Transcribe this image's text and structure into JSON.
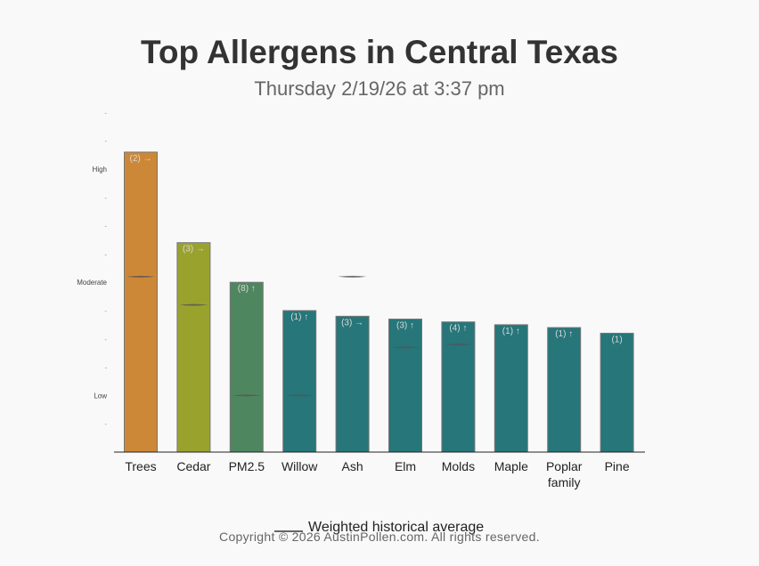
{
  "header": {
    "title": "Top Allergens in Central Texas",
    "subtitle": "Thursday 2/19/26 at 3:37 pm"
  },
  "legend": {
    "label": "Weighted historical average"
  },
  "footer": {
    "copyright": "Copyright © 2026 AustinPollen.com.  All rights reserved."
  },
  "chart_data": {
    "type": "bar",
    "title": "Top Allergens in Central Texas",
    "subtitle": "Thursday 2/19/26 at 3:37 pm",
    "categories": [
      "Trees",
      "Cedar",
      "PM2.5",
      "Willow",
      "Ash",
      "Elm",
      "Molds",
      "Maple",
      "Poplar family",
      "Pine"
    ],
    "category_lines": [
      [
        "Trees"
      ],
      [
        "Cedar"
      ],
      [
        "PM2.5"
      ],
      [
        "Willow"
      ],
      [
        "Ash"
      ],
      [
        "Elm"
      ],
      [
        "Molds"
      ],
      [
        "Maple"
      ],
      [
        "Poplar",
        "family"
      ],
      [
        "Pine"
      ]
    ],
    "values": [
      10.6,
      7.4,
      6.0,
      5.0,
      4.8,
      4.7,
      4.6,
      4.5,
      4.4,
      4.2
    ],
    "bar_labels": [
      "(2) →",
      "(3) →",
      "(8) ↑",
      "(1) ↑",
      "(3) →",
      "(3) ↑",
      "(4) ↑",
      "(1) ↑",
      "(1) ↑",
      "(1)"
    ],
    "bar_colors": [
      "#cd8837",
      "#9aa22e",
      "#4e875f",
      "#26767a",
      "#26767a",
      "#26767a",
      "#26767a",
      "#26767a",
      "#26767a",
      "#26767a"
    ],
    "historical_average": [
      6.2,
      5.2,
      2.0,
      2.0,
      6.2,
      3.7,
      3.8,
      null,
      null,
      null
    ],
    "y_ticks": [
      {
        "value": 12,
        "label": "-"
      },
      {
        "value": 11,
        "label": "-"
      },
      {
        "value": 10,
        "label": "High"
      },
      {
        "value": 9,
        "label": "-"
      },
      {
        "value": 8,
        "label": "-"
      },
      {
        "value": 7,
        "label": "-"
      },
      {
        "value": 6,
        "label": "Moderate"
      },
      {
        "value": 5,
        "label": "-"
      },
      {
        "value": 4,
        "label": "-"
      },
      {
        "value": 3,
        "label": "-"
      },
      {
        "value": 2,
        "label": "Low"
      },
      {
        "value": 1,
        "label": "-"
      }
    ],
    "ylim": [
      0,
      12
    ],
    "grid": false,
    "legend_position": "bottom"
  }
}
